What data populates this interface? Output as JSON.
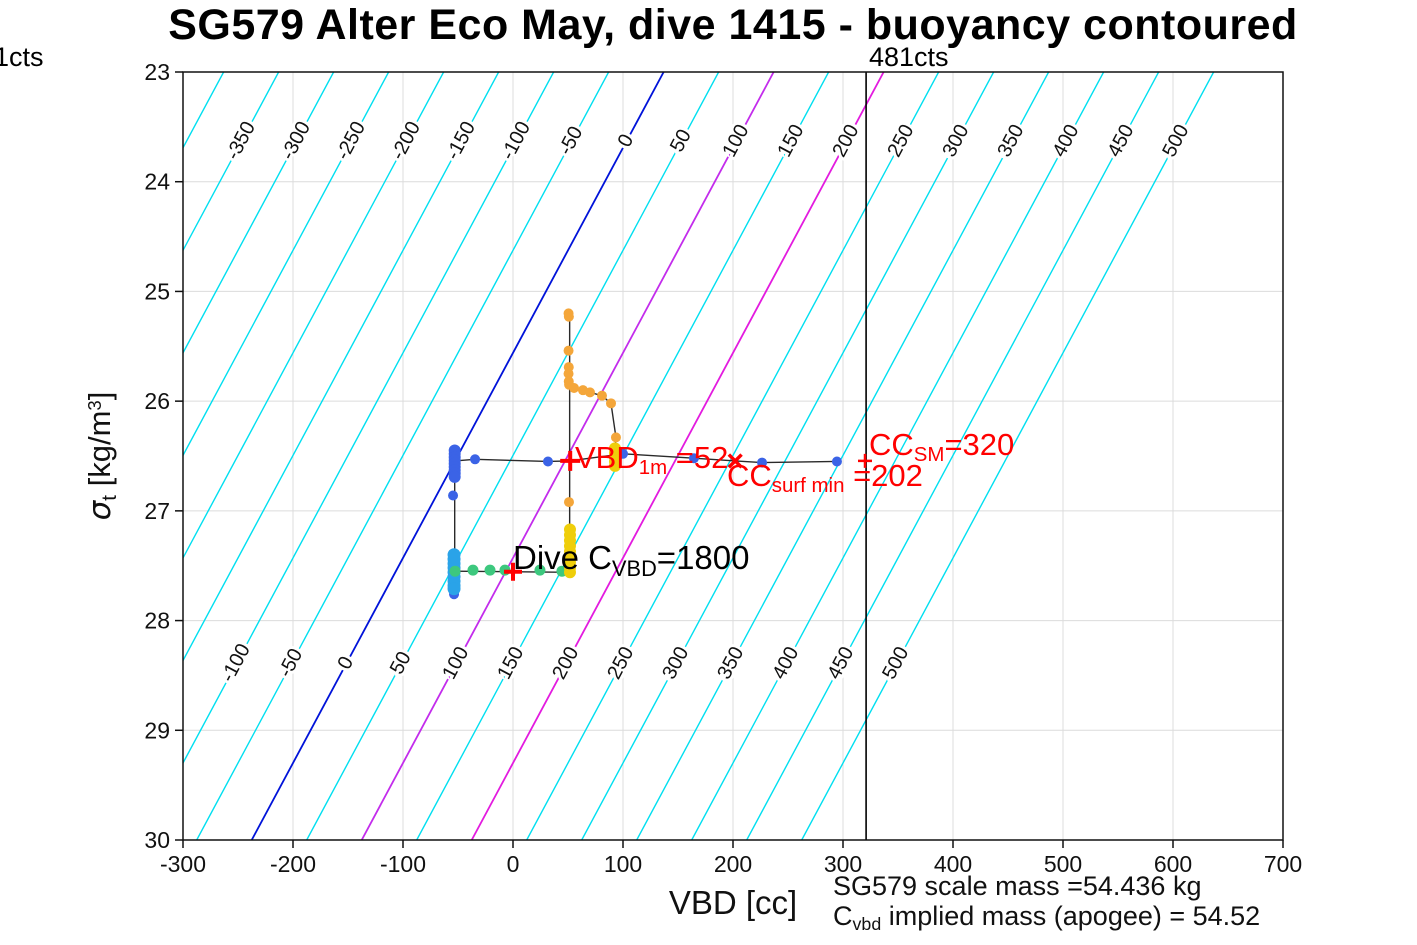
{
  "title": "SG579 Alter Eco May, dive 1415 - buoyancy contoured",
  "corner_labels": {
    "left": "1cts",
    "counts": "481cts"
  },
  "axes": {
    "x_label": "VBD [cc]",
    "y_label": {
      "sigma": "σ",
      "sub": "t",
      "mid": " [kg/m",
      "sup": "3",
      "post": "]"
    }
  },
  "annotations": {
    "vbd1m": {
      "pre": "VBD",
      "sub": "1m",
      "post": " =52"
    },
    "cc_surf_min": {
      "pre": "CC",
      "sub": "surf min",
      "post": " =202"
    },
    "cc_sm": {
      "pre": "CC",
      "sub": "SM",
      "post": "=320"
    },
    "dive_cvbd": {
      "pre": "Dive C",
      "sub": "VBD",
      "post": "=1800"
    }
  },
  "footer": {
    "line1": "SG579 scale mass =54.436 kg",
    "line2": {
      "pre": "C",
      "sub": "vbd",
      "post": " implied mass (apogee) = 54.52"
    }
  },
  "chart_data": {
    "type": "scatter",
    "title": "SG579 Alter Eco May, dive 1415 - buoyancy contoured",
    "xlabel": "VBD [cc]",
    "ylabel": "sigma_t [kg/m^3]",
    "xlim": [
      -300,
      700
    ],
    "ylim": [
      23,
      30
    ],
    "y_axis_reversed": true,
    "grid": true,
    "x_ticks": [
      -300,
      -200,
      -100,
      0,
      100,
      200,
      300,
      400,
      500,
      600,
      700
    ],
    "y_ticks": [
      23,
      24,
      25,
      26,
      27,
      28,
      29,
      30
    ],
    "contours": {
      "value_min": -400,
      "value_max": 500,
      "step": 50,
      "ref_sigma": 26.545,
      "offset_cc": -52.7,
      "slope_cc_per_sigma": -53.5,
      "label_rows": [
        {
          "sigma": 23.63,
          "from": -350,
          "to": 500
        },
        {
          "sigma": 28.39,
          "from": -100,
          "to": 500
        }
      ],
      "colors": {
        "default": "#00dff0",
        "0": "#0013d9",
        "100": "#c32cec",
        "200": "#e31bdf"
      }
    },
    "counts_line": {
      "v": 321,
      "label": "481cts",
      "color": "#000"
    },
    "tracks": [
      {
        "name": "surface-transit",
        "points": [
          [
            -53,
            26.545
          ],
          [
            -34.5,
            26.53
          ],
          [
            31.8,
            26.55
          ],
          [
            51,
            26.545
          ],
          [
            100,
            26.48
          ],
          [
            164.5,
            26.52
          ],
          [
            202,
            26.545
          ],
          [
            226.4,
            26.56
          ],
          [
            294.5,
            26.55
          ]
        ]
      },
      {
        "name": "descent-left",
        "points": [
          [
            -53,
            26.545
          ],
          [
            -53,
            27.55
          ]
        ]
      },
      {
        "name": "bottom-leg",
        "points": [
          [
            -53,
            27.55
          ],
          [
            51.8,
            27.56
          ]
        ]
      },
      {
        "name": "climb-vertical",
        "points": [
          [
            51.5,
            25.2
          ],
          [
            51.5,
            27.56
          ]
        ]
      },
      {
        "name": "climb-branch",
        "points": [
          [
            51,
            25.85
          ],
          [
            55.5,
            25.88
          ],
          [
            63.6,
            25.9
          ],
          [
            70,
            25.92
          ],
          [
            80.9,
            25.95
          ],
          [
            89.1,
            26.02
          ],
          [
            93.6,
            26.33
          ],
          [
            92.7,
            26.45
          ],
          [
            92.7,
            26.56
          ]
        ]
      }
    ],
    "series": [
      {
        "name": "dive-points-blue",
        "color": "#3b63e6",
        "r": 5,
        "points": [
          [
            -34.5,
            26.53
          ],
          [
            31.8,
            26.55
          ],
          [
            100,
            26.48
          ],
          [
            164.5,
            26.52
          ],
          [
            226.4,
            26.56
          ],
          [
            294.5,
            26.55
          ],
          [
            -54.5,
            26.86
          ],
          [
            -53.6,
            27.76
          ]
        ]
      },
      {
        "name": "surface-cluster-blue",
        "color": "#3b63e6",
        "r": 6,
        "points": [
          [
            -53,
            26.45
          ],
          [
            -53,
            26.48
          ],
          [
            -53,
            26.51
          ],
          [
            -53,
            26.54
          ],
          [
            -53,
            26.57
          ],
          [
            -53,
            26.6
          ],
          [
            -53,
            26.63
          ],
          [
            -53,
            26.66
          ],
          [
            -53,
            26.69
          ]
        ]
      },
      {
        "name": "deep-cluster-skyblue",
        "color": "#2aa3e8",
        "r": 6.5,
        "points": [
          [
            -53.6,
            27.4
          ],
          [
            -53.6,
            27.44
          ],
          [
            -53.6,
            27.48
          ],
          [
            -53.6,
            27.52
          ],
          [
            -53.6,
            27.56
          ],
          [
            -53.6,
            27.6
          ],
          [
            -53.6,
            27.64
          ],
          [
            -53.6,
            27.68
          ],
          [
            -53.6,
            27.71
          ]
        ]
      },
      {
        "name": "bottom-track-green",
        "color": "#3dc87e",
        "r": 5.5,
        "points": [
          [
            -52.7,
            27.55
          ],
          [
            -36.4,
            27.54
          ],
          [
            -20.9,
            27.54
          ],
          [
            -7.3,
            27.54
          ],
          [
            24.5,
            27.54
          ],
          [
            44.5,
            27.55
          ]
        ]
      },
      {
        "name": "climb-points-orange",
        "color": "#f4a63a",
        "r": 5,
        "points": [
          [
            50.5,
            25.2
          ],
          [
            50.8,
            25.23
          ],
          [
            50.5,
            25.54
          ],
          [
            50.7,
            25.69
          ],
          [
            50.5,
            25.75
          ],
          [
            50.7,
            25.82
          ],
          [
            51,
            25.85
          ],
          [
            55.5,
            25.88
          ],
          [
            63.6,
            25.9
          ],
          [
            70,
            25.92
          ],
          [
            80.9,
            25.95
          ],
          [
            89.1,
            26.02
          ],
          [
            93.6,
            26.33
          ],
          [
            50.9,
            26.92
          ]
        ]
      },
      {
        "name": "maneuver-gold",
        "color": "#efce0a",
        "r": 6,
        "points": [
          [
            92.7,
            26.43
          ],
          [
            92.7,
            26.47
          ],
          [
            92.7,
            26.51
          ],
          [
            92.7,
            26.55
          ],
          [
            92.7,
            26.59
          ],
          [
            51.8,
            27.17
          ],
          [
            51.8,
            27.22
          ],
          [
            51.8,
            27.27
          ],
          [
            51.8,
            27.32
          ],
          [
            51.8,
            27.37
          ],
          [
            51.8,
            27.42
          ],
          [
            51.8,
            27.47
          ],
          [
            51.8,
            27.52
          ],
          [
            51.8,
            27.56
          ]
        ]
      }
    ],
    "markers": [
      {
        "type": "plus",
        "v": 52,
        "sigma": 26.545,
        "size": 10,
        "w": 4,
        "label": "VBD_1m =52"
      },
      {
        "type": "cross",
        "v": 202,
        "sigma": 26.545,
        "size": 9,
        "w": 3.5,
        "label": "CC_surf min =202"
      },
      {
        "type": "plus",
        "v": 320,
        "sigma": 26.545,
        "size": 7,
        "w": 2.5,
        "label": "CC_SM=320"
      },
      {
        "type": "plus",
        "v": 0,
        "sigma": 27.555,
        "size": 9,
        "w": 4,
        "label": "Dive C_VBD=1800"
      }
    ],
    "marker_color": "#ff0000",
    "grid_color": "#dcdcdc",
    "axis_color": "#111111",
    "track_color": "#2a2a2a"
  }
}
